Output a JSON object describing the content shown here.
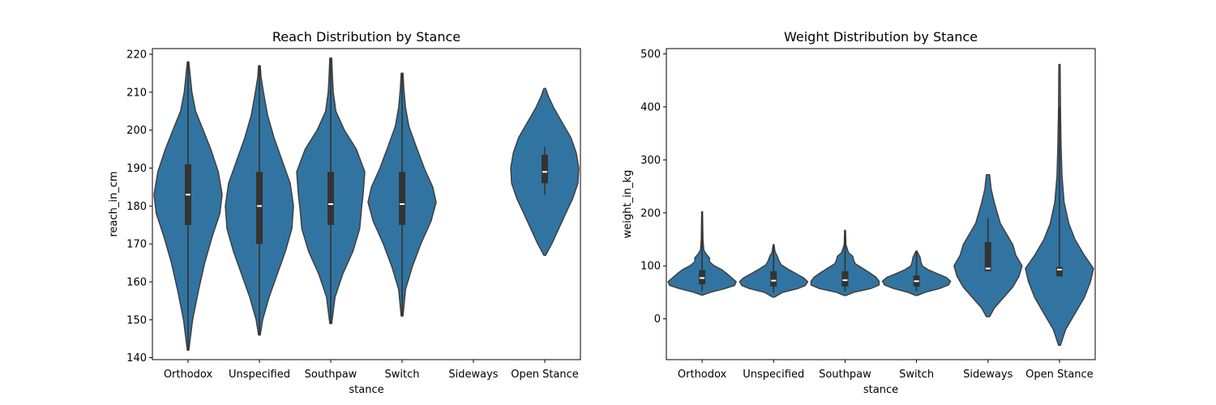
{
  "figure": {
    "colors": {
      "violin": "#3274a1",
      "edge": "#3f3f3f",
      "box": "#333333",
      "median": "#ffffff"
    }
  },
  "chart_data": [
    {
      "type": "violin",
      "title": "Reach Distribution by Stance",
      "xlabel": "stance",
      "ylabel": "reach_in_cm",
      "ylim": [
        139.5,
        221.5
      ],
      "yticks": [
        140,
        150,
        160,
        170,
        180,
        190,
        200,
        210,
        220
      ],
      "categories": [
        "Orthodox",
        "Unspecified",
        "Southpaw",
        "Switch",
        "Sideways",
        "Open Stance"
      ],
      "grid": false,
      "violins": [
        {
          "category": "Orthodox",
          "whisker": [
            142,
            218
          ],
          "q1": 175,
          "median": 183,
          "q3": 191,
          "kde": [
            [
              142,
              0.01
            ],
            [
              150,
              0.06
            ],
            [
              158,
              0.14
            ],
            [
              165,
              0.22
            ],
            [
              172,
              0.32
            ],
            [
              178,
              0.42
            ],
            [
              183,
              0.45
            ],
            [
              189,
              0.4
            ],
            [
              195,
              0.3
            ],
            [
              200,
              0.2
            ],
            [
              205,
              0.1
            ],
            [
              210,
              0.05
            ],
            [
              214,
              0.03
            ],
            [
              218,
              0.01
            ]
          ]
        },
        {
          "category": "Unspecified",
          "whisker": [
            146,
            217
          ],
          "q1": 170,
          "median": 180,
          "q3": 189,
          "kde": [
            [
              146,
              0.01
            ],
            [
              150,
              0.04
            ],
            [
              156,
              0.12
            ],
            [
              162,
              0.22
            ],
            [
              168,
              0.32
            ],
            [
              174,
              0.4
            ],
            [
              180,
              0.42
            ],
            [
              186,
              0.38
            ],
            [
              192,
              0.28
            ],
            [
              198,
              0.18
            ],
            [
              204,
              0.1
            ],
            [
              210,
              0.05
            ],
            [
              214,
              0.02
            ],
            [
              217,
              0.01
            ]
          ]
        },
        {
          "category": "Southpaw",
          "whisker": [
            149,
            219
          ],
          "q1": 175,
          "median": 180.5,
          "q3": 189,
          "kde": [
            [
              149,
              0.01
            ],
            [
              156,
              0.05
            ],
            [
              162,
              0.14
            ],
            [
              168,
              0.26
            ],
            [
              174,
              0.34
            ],
            [
              179,
              0.36
            ],
            [
              183,
              0.38
            ],
            [
              189,
              0.4
            ],
            [
              195,
              0.3
            ],
            [
              200,
              0.16
            ],
            [
              205,
              0.06
            ],
            [
              210,
              0.03
            ],
            [
              214,
              0.02
            ],
            [
              219,
              0.01
            ]
          ]
        },
        {
          "category": "Switch",
          "whisker": [
            151,
            215
          ],
          "q1": 175,
          "median": 180.5,
          "q3": 189,
          "kde": [
            [
              151,
              0.01
            ],
            [
              158,
              0.04
            ],
            [
              164,
              0.12
            ],
            [
              170,
              0.22
            ],
            [
              176,
              0.34
            ],
            [
              181,
              0.4
            ],
            [
              185,
              0.36
            ],
            [
              190,
              0.26
            ],
            [
              196,
              0.16
            ],
            [
              201,
              0.08
            ],
            [
              206,
              0.04
            ],
            [
              211,
              0.02
            ],
            [
              215,
              0.01
            ]
          ]
        },
        {
          "category": "Sideways",
          "empty": true
        },
        {
          "category": "Open Stance",
          "whisker": [
            183,
            195.5
          ],
          "q1": 186,
          "median": 189,
          "q3": 193.5,
          "kde": [
            [
              167,
              0.01
            ],
            [
              170,
              0.08
            ],
            [
              174,
              0.16
            ],
            [
              178,
              0.24
            ],
            [
              182,
              0.32
            ],
            [
              186,
              0.38
            ],
            [
              190,
              0.39
            ],
            [
              194,
              0.36
            ],
            [
              198,
              0.3
            ],
            [
              202,
              0.2
            ],
            [
              206,
              0.1
            ],
            [
              209,
              0.04
            ],
            [
              211,
              0.01
            ]
          ]
        }
      ]
    },
    {
      "type": "violin",
      "title": "Weight Distribution by Stance",
      "xlabel": "stance",
      "ylabel": "weight_in_kg",
      "ylim": [
        -77,
        510
      ],
      "yticks": [
        0,
        100,
        200,
        300,
        400,
        500
      ],
      "categories": [
        "Orthodox",
        "Unspecified",
        "Southpaw",
        "Switch",
        "Sideways",
        "Open Stance"
      ],
      "grid": false,
      "violins": [
        {
          "category": "Orthodox",
          "whisker": [
            52,
            202
          ],
          "q1": 65,
          "median": 77,
          "q3": 92,
          "kde": [
            [
              45,
              0.01
            ],
            [
              50,
              0.1
            ],
            [
              57,
              0.28
            ],
            [
              63,
              0.4
            ],
            [
              70,
              0.42
            ],
            [
              78,
              0.36
            ],
            [
              86,
              0.3
            ],
            [
              93,
              0.24
            ],
            [
              101,
              0.14
            ],
            [
              108,
              0.09
            ],
            [
              115,
              0.09
            ],
            [
              122,
              0.05
            ],
            [
              130,
              0.02
            ],
            [
              150,
              0.01
            ],
            [
              202,
              0.005
            ]
          ]
        },
        {
          "category": "Unspecified",
          "whisker": [
            50,
            140
          ],
          "q1": 61,
          "median": 72,
          "q3": 90,
          "kde": [
            [
              41,
              0.01
            ],
            [
              50,
              0.12
            ],
            [
              57,
              0.32
            ],
            [
              63,
              0.42
            ],
            [
              70,
              0.45
            ],
            [
              77,
              0.4
            ],
            [
              85,
              0.3
            ],
            [
              93,
              0.2
            ],
            [
              102,
              0.1
            ],
            [
              110,
              0.07
            ],
            [
              118,
              0.05
            ],
            [
              126,
              0.02
            ],
            [
              140,
              0.005
            ]
          ]
        },
        {
          "category": "Southpaw",
          "whisker": [
            52,
            167
          ],
          "q1": 61,
          "median": 73,
          "q3": 90,
          "kde": [
            [
              44,
              0.01
            ],
            [
              50,
              0.1
            ],
            [
              57,
              0.3
            ],
            [
              64,
              0.4
            ],
            [
              71,
              0.4
            ],
            [
              79,
              0.36
            ],
            [
              88,
              0.28
            ],
            [
              96,
              0.2
            ],
            [
              104,
              0.12
            ],
            [
              111,
              0.1
            ],
            [
              118,
              0.09
            ],
            [
              125,
              0.04
            ],
            [
              140,
              0.01
            ],
            [
              167,
              0.005
            ]
          ]
        },
        {
          "category": "Switch",
          "whisker": [
            52,
            128
          ],
          "q1": 61,
          "median": 71,
          "q3": 82,
          "kde": [
            [
              44,
              0.01
            ],
            [
              50,
              0.12
            ],
            [
              57,
              0.32
            ],
            [
              64,
              0.45
            ],
            [
              71,
              0.48
            ],
            [
              78,
              0.42
            ],
            [
              86,
              0.28
            ],
            [
              93,
              0.16
            ],
            [
              100,
              0.08
            ],
            [
              108,
              0.06
            ],
            [
              116,
              0.05
            ],
            [
              124,
              0.02
            ],
            [
              128,
              0.005
            ]
          ]
        },
        {
          "category": "Sideways",
          "whisker": [
            90,
            190
          ],
          "q1": 90,
          "median": 95,
          "q3": 145,
          "kde": [
            [
              4,
              0.005
            ],
            [
              20,
              0.02
            ],
            [
              40,
              0.05
            ],
            [
              60,
              0.08
            ],
            [
              80,
              0.1
            ],
            [
              100,
              0.11
            ],
            [
              120,
              0.09
            ],
            [
              140,
              0.08
            ],
            [
              160,
              0.06
            ],
            [
              180,
              0.04
            ],
            [
              200,
              0.03
            ],
            [
              220,
              0.02
            ],
            [
              245,
              0.01
            ],
            [
              272,
              0.005
            ]
          ]
        },
        {
          "category": "Open Stance",
          "whisker": [
            80,
            400
          ],
          "q1": 80,
          "median": 93,
          "q3": 98,
          "kde": [
            [
              -50,
              0.003
            ],
            [
              -20,
              0.02
            ],
            [
              10,
              0.05
            ],
            [
              40,
              0.08
            ],
            [
              70,
              0.1
            ],
            [
              95,
              0.11
            ],
            [
              120,
              0.08
            ],
            [
              150,
              0.05
            ],
            [
              180,
              0.03
            ],
            [
              220,
              0.015
            ],
            [
              270,
              0.008
            ],
            [
              330,
              0.005
            ],
            [
              400,
              0.003
            ],
            [
              480,
              0.002
            ]
          ]
        }
      ]
    }
  ]
}
